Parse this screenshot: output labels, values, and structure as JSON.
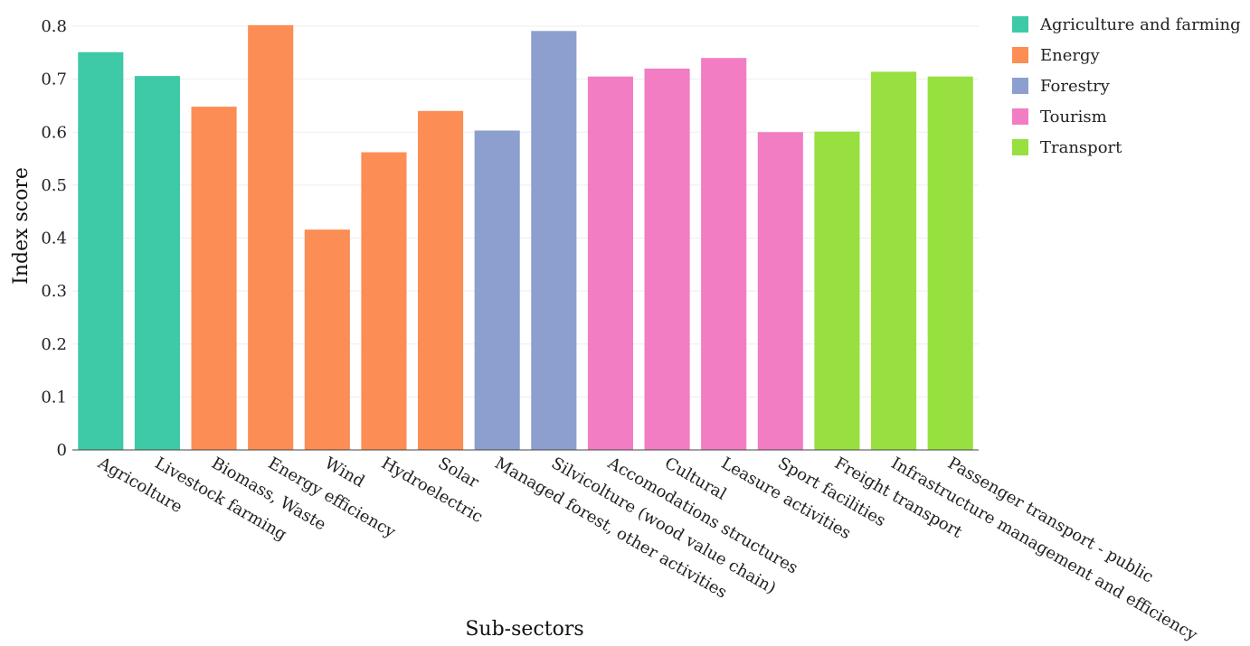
{
  "chart_data": {
    "type": "bar",
    "title": "",
    "xlabel": "Sub-sectors",
    "ylabel": "Index score",
    "ylim": [
      0,
      0.8
    ],
    "yticks": [
      "0",
      "0.1",
      "0.2",
      "0.3",
      "0.4",
      "0.5",
      "0.6",
      "0.7",
      "0.8"
    ],
    "grid": true,
    "legend_position": "top-right",
    "categories": [
      "Agricolture",
      "Livestock farming",
      "Biomass, Waste",
      "Energy efficiency",
      "Wind",
      "Hydroelectric",
      "Solar",
      "Managed forest, other activities",
      "Silvicolture (wood value chain)",
      "Accomodations structures",
      "Cultural",
      "Leasure activities",
      "Sport facilities",
      "Freight transport",
      "Infrastructure management and efficiency",
      "Passenger transport - public"
    ],
    "values": [
      0.751,
      0.706,
      0.648,
      0.802,
      0.416,
      0.562,
      0.64,
      0.603,
      0.791,
      0.705,
      0.72,
      0.74,
      0.6,
      0.601,
      0.714,
      0.705
    ],
    "groups": [
      "Agriculture and farming",
      "Agriculture and farming",
      "Energy",
      "Energy",
      "Energy",
      "Energy",
      "Energy",
      "Forestry",
      "Forestry",
      "Tourism",
      "Tourism",
      "Tourism",
      "Tourism",
      "Transport",
      "Transport",
      "Transport"
    ],
    "legend": [
      {
        "name": "Agriculture and farming",
        "color": "#3ec9a7"
      },
      {
        "name": "Energy",
        "color": "#fc8d55"
      },
      {
        "name": "Forestry",
        "color": "#8d9fcf"
      },
      {
        "name": "Tourism",
        "color": "#f27dc3"
      },
      {
        "name": "Transport",
        "color": "#97e03f"
      }
    ]
  }
}
